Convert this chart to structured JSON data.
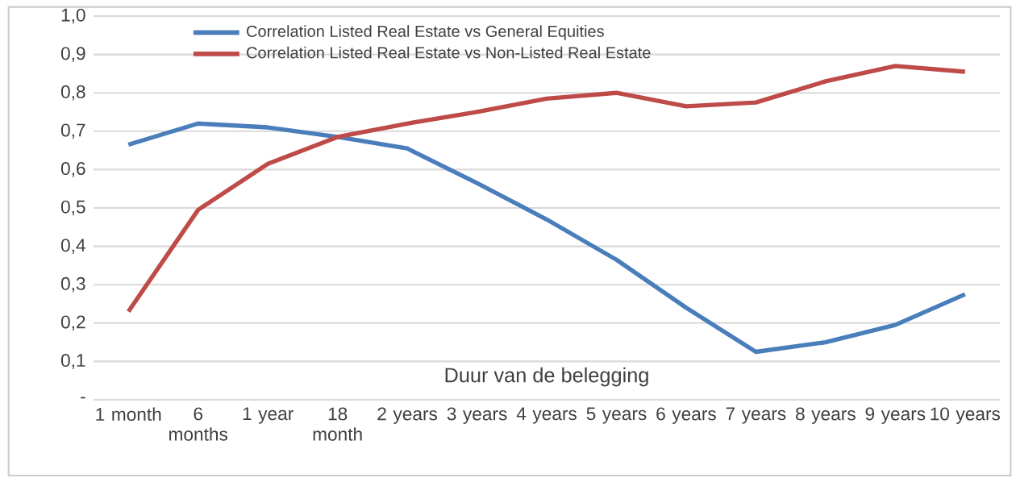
{
  "chart_data": {
    "type": "line",
    "xlabel": "Duur van de belegging",
    "categories": [
      "1 month",
      "6 months",
      "1 year",
      "18 month",
      "2 years",
      "3 years",
      "4 years",
      "5 years",
      "6 years",
      "7 years",
      "8 years",
      "9 years",
      "10 years"
    ],
    "series": [
      {
        "name": "Correlation Listed Real Estate vs General Equities",
        "color": "#4a7ebb",
        "values": [
          0.665,
          0.72,
          0.71,
          0.685,
          0.655,
          0.565,
          0.47,
          0.365,
          0.24,
          0.125,
          0.15,
          0.195,
          0.275
        ]
      },
      {
        "name": "Correlation Listed Real Estate vs Non-Listed Real Estate",
        "color": "#be4b48",
        "values": [
          0.23,
          0.495,
          0.615,
          0.685,
          0.72,
          0.75,
          0.785,
          0.8,
          0.765,
          0.775,
          0.83,
          0.87,
          0.855
        ]
      }
    ],
    "ylim": [
      0,
      1.0
    ],
    "yticks": [
      {
        "value": 0,
        "label": "-"
      },
      {
        "value": 0.1,
        "label": "0,1"
      },
      {
        "value": 0.2,
        "label": "0,2"
      },
      {
        "value": 0.3,
        "label": "0,3"
      },
      {
        "value": 0.4,
        "label": "0,4"
      },
      {
        "value": 0.5,
        "label": "0,5"
      },
      {
        "value": 0.6,
        "label": "0,6"
      },
      {
        "value": 0.7,
        "label": "0,7"
      },
      {
        "value": 0.8,
        "label": "0,8"
      },
      {
        "value": 0.9,
        "label": "0,9"
      },
      {
        "value": 1.0,
        "label": "1,0"
      }
    ],
    "grid": "y",
    "legend": "top left",
    "marker": "none",
    "line_style": "solid"
  }
}
